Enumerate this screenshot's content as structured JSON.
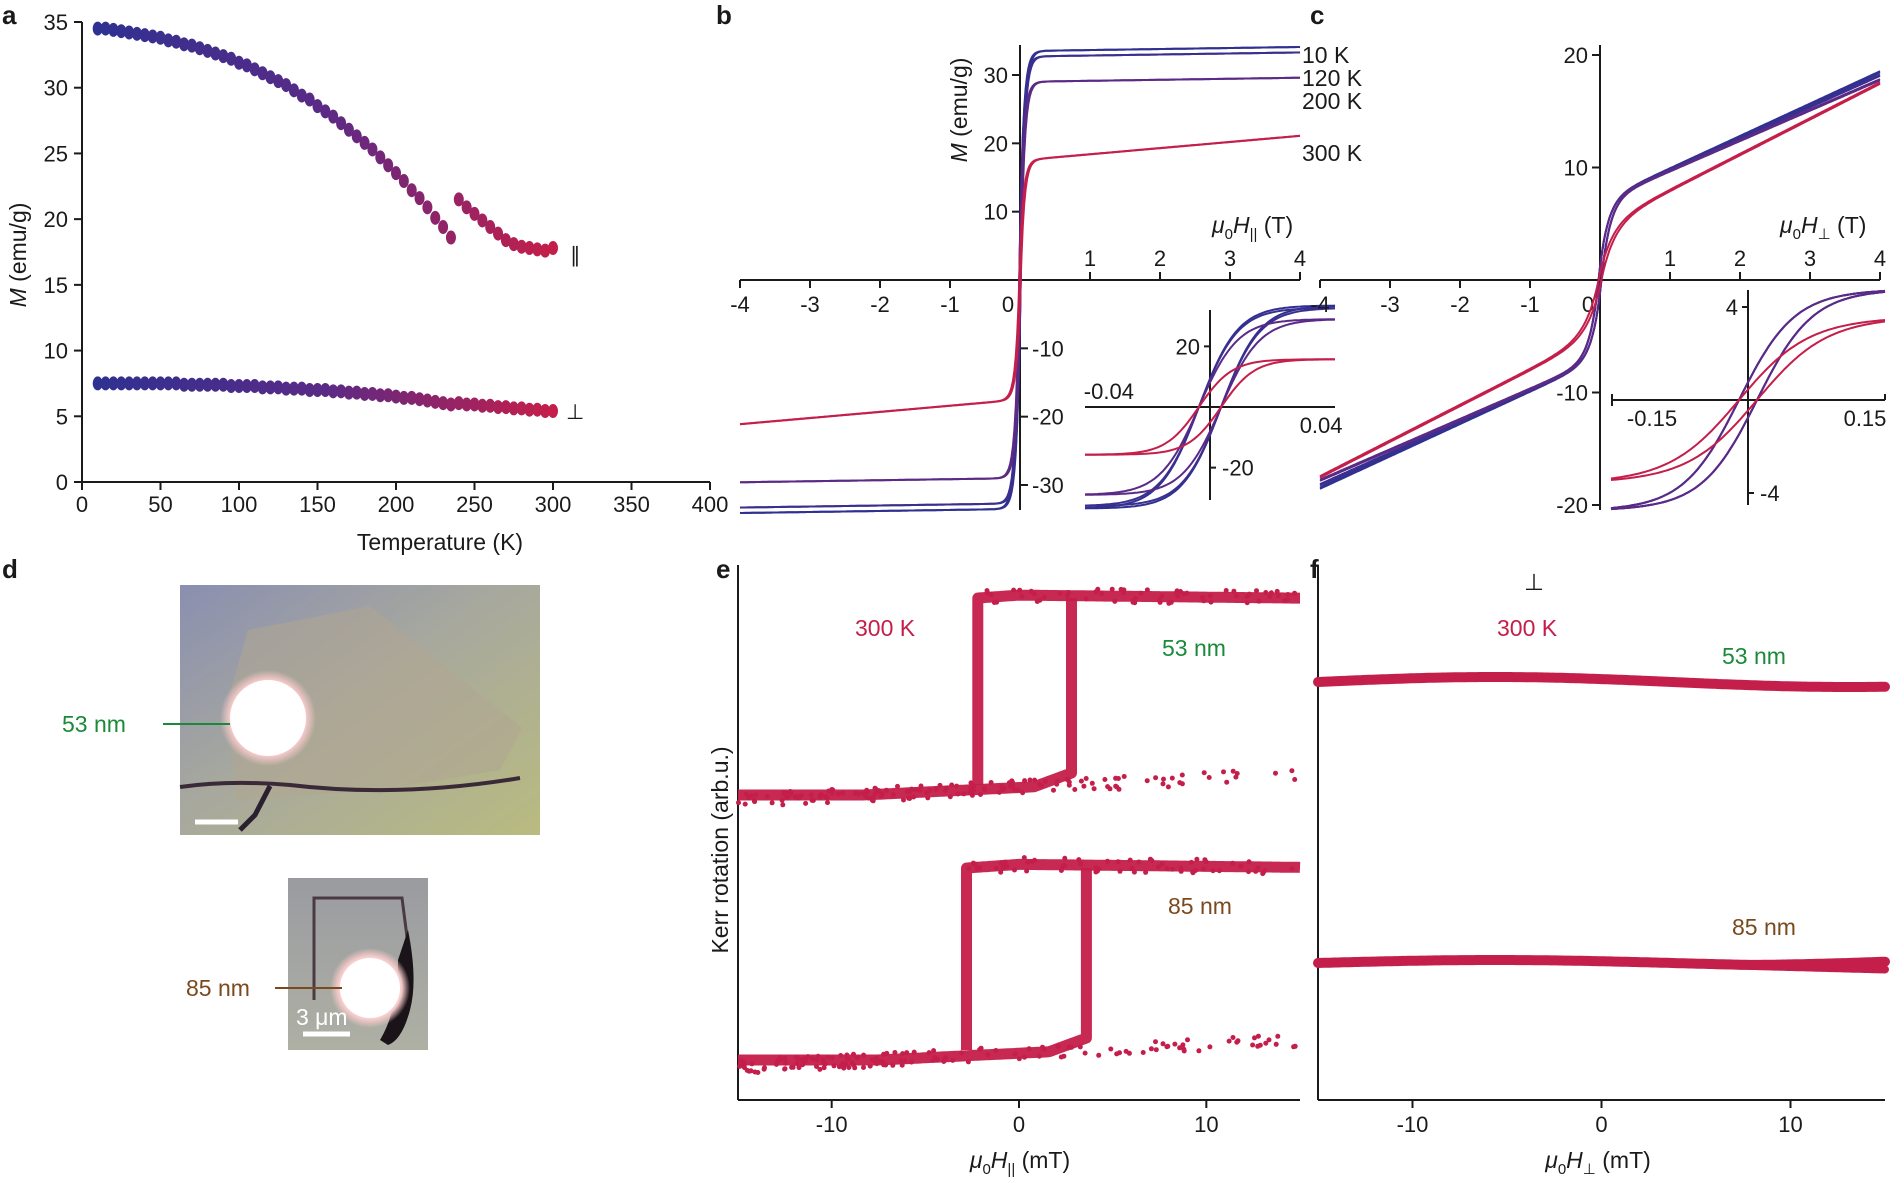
{
  "colors": {
    "low_T": "#2f3192",
    "mid_T": "#5b2a86",
    "high_T": "#c41e4a",
    "thick53": "#1a8a3a",
    "thick85": "#7a4a1e",
    "axis": "#1a1a1a"
  },
  "panels": {
    "a": "a",
    "b": "b",
    "c": "c",
    "d": "d",
    "e": "e",
    "f": "f"
  },
  "chart_data": [
    {
      "id": "a",
      "type": "scatter",
      "xlabel": "Temperature (K)",
      "ylabel_italic": "M",
      "ylabel_rest": " (emu/g)",
      "xlim": [
        0,
        400
      ],
      "ylim": [
        0,
        35
      ],
      "xticks": [
        "0",
        "50",
        "100",
        "150",
        "200",
        "250",
        "300",
        "350",
        "400"
      ],
      "yticks": [
        "0",
        "5",
        "10",
        "15",
        "20",
        "25",
        "30",
        "35"
      ],
      "series": [
        {
          "name": "parallel",
          "label": "∥",
          "x": [
            10,
            15,
            20,
            25,
            30,
            35,
            40,
            45,
            50,
            55,
            60,
            65,
            70,
            75,
            80,
            85,
            90,
            95,
            100,
            105,
            110,
            115,
            120,
            125,
            130,
            135,
            140,
            145,
            150,
            155,
            160,
            165,
            170,
            175,
            180,
            185,
            190,
            195,
            200,
            205,
            210,
            215,
            220,
            225,
            230,
            235,
            240,
            245,
            250,
            255,
            260,
            265,
            270,
            275,
            280,
            285,
            290,
            295,
            300
          ],
          "y": [
            34.5,
            34.5,
            34.4,
            34.3,
            34.2,
            34.1,
            34.0,
            33.9,
            33.8,
            33.6,
            33.5,
            33.3,
            33.2,
            33.0,
            32.8,
            32.6,
            32.4,
            32.2,
            31.9,
            31.7,
            31.4,
            31.1,
            30.8,
            30.5,
            30.2,
            29.8,
            29.4,
            29.1,
            28.6,
            28.2,
            27.8,
            27.3,
            26.8,
            26.3,
            25.8,
            25.3,
            24.7,
            24.1,
            23.5,
            22.9,
            22.2,
            21.6,
            20.9,
            20.1,
            19.4,
            18.6,
            21.5,
            20.9,
            20.4,
            19.9,
            19.4,
            18.9,
            18.4,
            18.1,
            17.9,
            17.8,
            17.7,
            17.6,
            17.8
          ]
        },
        {
          "name": "perpendicular",
          "label": "⊥",
          "x": [
            10,
            15,
            20,
            25,
            30,
            35,
            40,
            45,
            50,
            55,
            60,
            65,
            70,
            75,
            80,
            85,
            90,
            95,
            100,
            105,
            110,
            115,
            120,
            125,
            130,
            135,
            140,
            145,
            150,
            155,
            160,
            165,
            170,
            175,
            180,
            185,
            190,
            195,
            200,
            205,
            210,
            215,
            220,
            225,
            230,
            235,
            240,
            245,
            250,
            255,
            260,
            265,
            270,
            275,
            280,
            285,
            290,
            295,
            300
          ],
          "y": [
            7.5,
            7.5,
            7.5,
            7.5,
            7.5,
            7.5,
            7.5,
            7.5,
            7.5,
            7.5,
            7.5,
            7.4,
            7.4,
            7.4,
            7.4,
            7.4,
            7.4,
            7.3,
            7.3,
            7.3,
            7.3,
            7.2,
            7.2,
            7.2,
            7.1,
            7.1,
            7.1,
            7.0,
            7.0,
            7.0,
            6.9,
            6.9,
            6.8,
            6.8,
            6.7,
            6.7,
            6.6,
            6.6,
            6.5,
            6.4,
            6.4,
            6.3,
            6.2,
            6.1,
            6.0,
            5.9,
            6.0,
            5.9,
            5.9,
            5.8,
            5.8,
            5.7,
            5.7,
            5.6,
            5.6,
            5.5,
            5.5,
            5.4,
            5.4
          ]
        }
      ]
    },
    {
      "id": "b",
      "type": "line",
      "xlabel_mu": "μ",
      "xlabel_sub0": "0",
      "xlabel_H": "H",
      "xlabel_sub": "||",
      "xlabel_unit": " (T)",
      "ylabel_italic": "M",
      "ylabel_rest": " (emu/g)",
      "xlim": [
        -4,
        4
      ],
      "ylim": [
        -35,
        35
      ],
      "xticks": [
        "-4",
        "-3",
        "-2",
        "-1",
        "0",
        "1",
        "2",
        "3",
        "4"
      ],
      "yticks_pos": [
        "10",
        "20",
        "30"
      ],
      "yticks_neg": [
        "-10",
        "-20",
        "-30"
      ],
      "series": [
        {
          "name": "10 K",
          "Ms": 33.5,
          "slope": 0.15
        },
        {
          "name": "120 K",
          "Ms": 32.7,
          "slope": 0.15
        },
        {
          "name": "200 K",
          "Ms": 29.0,
          "slope": 0.15
        },
        {
          "name": "300 K",
          "Ms": 17.5,
          "slope": 0.9
        }
      ],
      "inset": {
        "xlim": [
          -0.04,
          0.04
        ],
        "ylim": [
          -30,
          30
        ],
        "xtick_left": "-0.04",
        "xtick_right": "0.04",
        "ytick_top": "20",
        "ytick_bottom": "-20"
      }
    },
    {
      "id": "c",
      "type": "line",
      "xlabel_mu": "μ",
      "xlabel_sub0": "0",
      "xlabel_H": "H",
      "xlabel_sub": "⊥",
      "xlabel_unit": " (T)",
      "xlim": [
        -4,
        4
      ],
      "ylim": [
        -22,
        22
      ],
      "xticks": [
        "-4",
        "-3",
        "-2",
        "-1",
        "0",
        "1",
        "2",
        "3",
        "4"
      ],
      "yticks_pos": [
        "10",
        "20"
      ],
      "yticks_neg": [
        "-10",
        "-20"
      ],
      "series": [
        {
          "name": "10 K",
          "value_at_4T": 18.5
        },
        {
          "name": "120 K",
          "value_at_4T": 18.2
        },
        {
          "name": "200 K",
          "value_at_4T": 17.8
        },
        {
          "name": "300 K",
          "value_at_4T": 17.5
        }
      ],
      "inset": {
        "xlim": [
          -0.15,
          0.15
        ],
        "ylim": [
          -4.5,
          4.5
        ],
        "xtick_left": "-0.15",
        "xtick_right": "0.15",
        "ytick_top": "4",
        "ytick_bottom": "-4"
      }
    },
    {
      "id": "e",
      "type": "scatter",
      "xlabel_mu": "μ",
      "xlabel_sub0": "0",
      "xlabel_H": "H",
      "xlabel_sub": "||",
      "xlabel_unit": " (mT)",
      "ylabel": "Kerr rotation (arb.u.)",
      "xlim": [
        -15,
        15
      ],
      "xticks": [
        "-10",
        "0",
        "10"
      ],
      "temperature": "300 K",
      "series": [
        {
          "name": "53 nm",
          "coercive_mT": [
            -2.2,
            2.8
          ]
        },
        {
          "name": "85 nm",
          "coercive_mT": [
            -2.8,
            3.6
          ]
        }
      ]
    },
    {
      "id": "f",
      "type": "scatter",
      "xlabel_mu": "μ",
      "xlabel_sub0": "0",
      "xlabel_H": "H",
      "xlabel_sub": "⊥",
      "xlabel_unit": " (mT)",
      "xlim": [
        -15,
        15
      ],
      "xticks": [
        "-10",
        "0",
        "10"
      ],
      "orientation_symbol": "⊥",
      "temperature": "300 K",
      "series": [
        {
          "name": "53 nm"
        },
        {
          "name": "85 nm"
        }
      ]
    }
  ],
  "panel_d": {
    "label_53": "53 nm",
    "label_85": "85 nm",
    "scalebar": "3 μm"
  }
}
